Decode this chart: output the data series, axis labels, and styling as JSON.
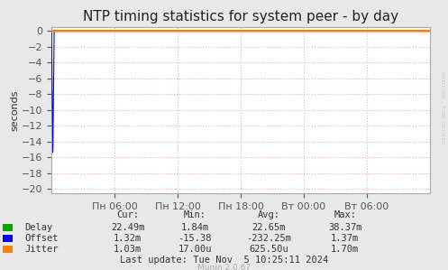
{
  "title": "NTP timing statistics for system peer - by day",
  "ylabel": "seconds",
  "ylim": [
    -20.5,
    0.5
  ],
  "yticks": [
    0.0,
    -2.0,
    -4.0,
    -6.0,
    -8.0,
    -10.0,
    -12.0,
    -14.0,
    -16.0,
    -18.0,
    -20.0
  ],
  "xtick_labels": [
    "Пн 06:00",
    "Пн 12:00",
    "Пн 18:00",
    "Вт 00:00",
    "Вт 06:00"
  ],
  "bg_color": "#e8e8e8",
  "plot_bg_color": "#ffffff",
  "grid_color": "#ffaaaa",
  "title_fontsize": 11,
  "axis_fontsize": 8,
  "tick_color": "#555555",
  "watermark": "RRDTOOL / TOBI OETIKER",
  "munin_version": "Munin 2.0.67",
  "legend_items": [
    {
      "label": "Delay",
      "color": "#00aa00"
    },
    {
      "label": "Offset",
      "color": "#0000ff"
    },
    {
      "label": "Jitter",
      "color": "#ff8000"
    }
  ],
  "stats_headers": [
    "Cur:",
    "Min:",
    "Avg:",
    "Max:"
  ],
  "stats": [
    [
      "22.49m",
      "1.84m",
      "22.65m",
      "38.37m"
    ],
    [
      "1.32m",
      "-15.38",
      "-232.25m",
      "1.37m"
    ],
    [
      "1.03m",
      "17.00u",
      "625.50u",
      "1.70m"
    ]
  ],
  "last_update": "Last update: Tue Nov  5 10:25:11 2024",
  "n_xticks": 5
}
